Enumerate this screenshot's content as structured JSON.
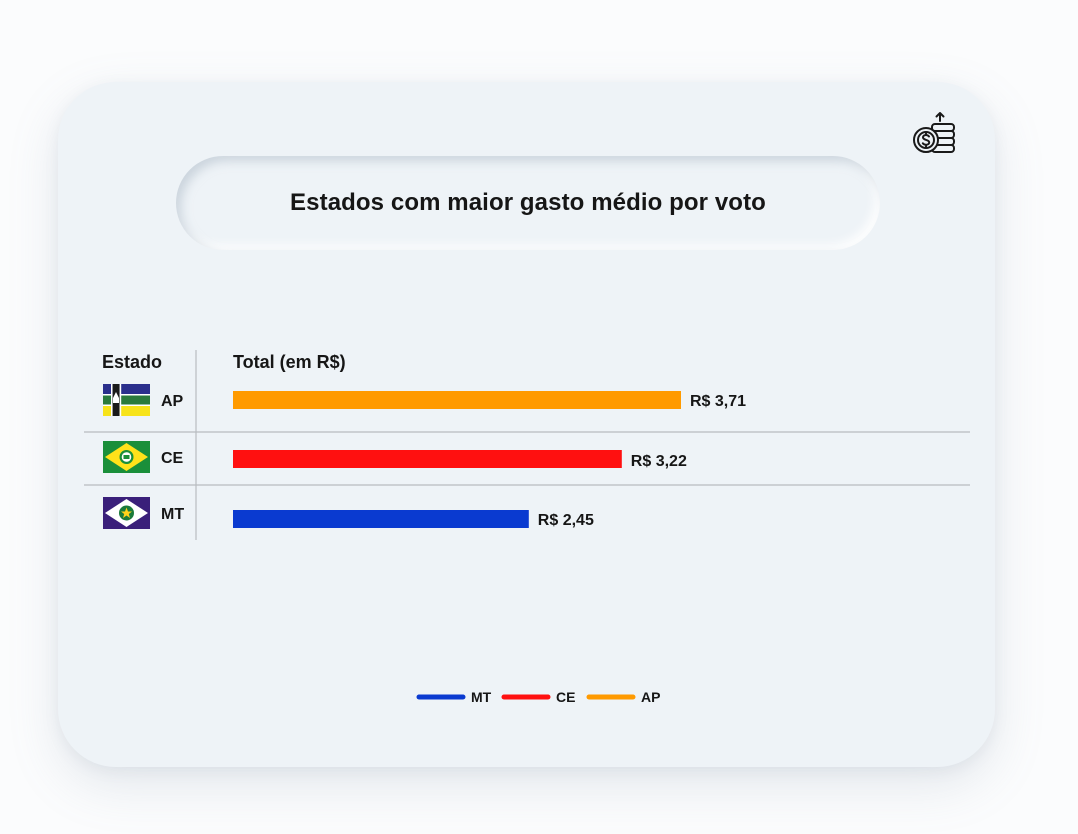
{
  "title": "Estados com maior gasto médio por voto",
  "table_headers": {
    "estado": "Estado",
    "total": "Total (em R$)"
  },
  "icons": {
    "top_right": "money-stack-icon"
  },
  "chart_data": {
    "type": "bar",
    "orientation": "horizontal",
    "categories": [
      "AP",
      "CE",
      "MT"
    ],
    "values": [
      3.71,
      3.22,
      2.45
    ],
    "value_labels": [
      "R$ 3,71",
      "R$ 3,22",
      "R$ 2,45"
    ],
    "colors": [
      "#ff9a00",
      "#ff1010",
      "#0a3ad0"
    ],
    "xlim": [
      0,
      3.71
    ],
    "grid": false,
    "legend": {
      "placement": "bottom-center",
      "items": [
        {
          "label": "MT",
          "color": "#0a3ad0"
        },
        {
          "label": "CE",
          "color": "#ff1010"
        },
        {
          "label": "AP",
          "color": "#ff9a00"
        }
      ]
    }
  },
  "colors": {
    "card_background": "#eef3f7",
    "divider": "#b8bcc0"
  }
}
